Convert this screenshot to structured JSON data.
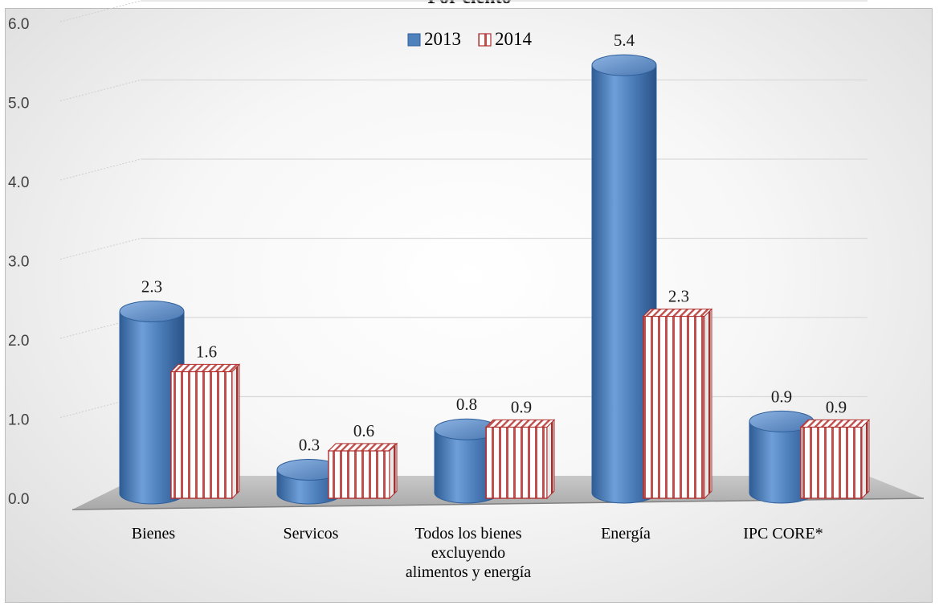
{
  "chart_data": {
    "type": "bar",
    "title": "Por ciento",
    "categories": [
      [
        "Bienes"
      ],
      [
        "Servicos"
      ],
      [
        "Todos los bienes",
        "excluyendo",
        "alimentos y energía"
      ],
      [
        "Energía"
      ],
      [
        "IPC CORE*"
      ]
    ],
    "series": [
      {
        "name": "2013",
        "values": [
          2.3,
          0.3,
          0.8,
          5.4,
          0.9
        ],
        "labels": [
          "2.3",
          "0.3",
          "0.8",
          "5.4",
          "0.9"
        ],
        "color": "#4f81bd"
      },
      {
        "name": "2014",
        "values": [
          1.6,
          0.6,
          0.9,
          2.3,
          0.9
        ],
        "labels": [
          "1.6",
          "0.6",
          "0.9",
          "2.3",
          "0.9"
        ],
        "color": "#c0504d"
      }
    ],
    "yticks": [
      "0.0",
      "1.0",
      "2.0",
      "3.0",
      "4.0",
      "5.0",
      "6.0"
    ],
    "ylim": [
      0,
      6
    ],
    "grid": true,
    "legend_position": "top-center"
  }
}
